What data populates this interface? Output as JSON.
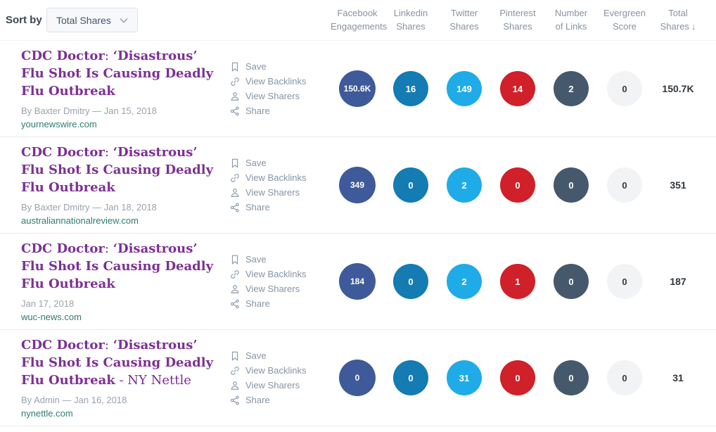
{
  "toolbar": {
    "sort_by_label": "Sort by",
    "sort_dropdown_value": "Total Shares"
  },
  "columns": [
    {
      "line1": "Facebook",
      "line2": "Engagements"
    },
    {
      "line1": "Linkedin",
      "line2": "Shares"
    },
    {
      "line1": "Twitter",
      "line2": "Shares"
    },
    {
      "line1": "Pinterest",
      "line2": "Shares"
    },
    {
      "line1": "Number",
      "line2": "of Links"
    },
    {
      "line1": "Evergreen",
      "line2": "Score"
    },
    {
      "line1": "Total",
      "line2": "Shares",
      "sorted": true,
      "sort_icon": "↓"
    }
  ],
  "actions": [
    {
      "label": "Save"
    },
    {
      "label": "View Backlinks"
    },
    {
      "label": "View Sharers"
    },
    {
      "label": "Share"
    }
  ],
  "colors": {
    "facebook": "#3f5a9a",
    "linkedin": "#147bb3",
    "twitter": "#1fabe8",
    "pinterest": "#d0202a",
    "links": "#46586c",
    "evergreen": "#f2f3f4",
    "title_purple": "#7c3093",
    "domain_teal": "#2f7d6d"
  },
  "rows": [
    {
      "title_parts": [
        {
          "text": "CDC Doctor",
          "bold": true
        },
        {
          "text": ": ",
          "bold": false
        },
        {
          "text": "‘Disastrous’ Flu Shot Is Causing Deadly Flu Outbreak",
          "bold": true
        }
      ],
      "byline": "By Baxter Dmitry — Jan 15, 2018",
      "domain": "yournewswire.com",
      "metrics": {
        "facebook_engagements": "150.6K",
        "linkedin_shares": "16",
        "twitter_shares": "149",
        "pinterest_shares": "14",
        "number_of_links": "2",
        "evergreen_score": "0",
        "total_shares": "150.7K"
      }
    },
    {
      "title_parts": [
        {
          "text": "CDC Doctor",
          "bold": true
        },
        {
          "text": ": ",
          "bold": false
        },
        {
          "text": "‘Disastrous’ Flu Shot Is Causing Deadly Flu Outbreak",
          "bold": true
        }
      ],
      "byline": "By Baxter Dmitry — Jan 18, 2018",
      "domain": "australiannationalreview.com",
      "metrics": {
        "facebook_engagements": "349",
        "linkedin_shares": "0",
        "twitter_shares": "2",
        "pinterest_shares": "0",
        "number_of_links": "0",
        "evergreen_score": "0",
        "total_shares": "351"
      }
    },
    {
      "title_parts": [
        {
          "text": "CDC Doctor",
          "bold": true
        },
        {
          "text": ": ",
          "bold": false
        },
        {
          "text": "‘Disastrous’ Flu Shot Is Causing Deadly Flu Outbreak",
          "bold": true
        }
      ],
      "byline": "Jan 17, 2018",
      "domain": "wuc-news.com",
      "metrics": {
        "facebook_engagements": "184",
        "linkedin_shares": "0",
        "twitter_shares": "2",
        "pinterest_shares": "1",
        "number_of_links": "0",
        "evergreen_score": "0",
        "total_shares": "187"
      }
    },
    {
      "title_parts": [
        {
          "text": "CDC Doctor",
          "bold": true
        },
        {
          "text": ": ",
          "bold": false
        },
        {
          "text": "‘Disastrous’ Flu Shot Is Causing Deadly Flu Outbreak",
          "bold": true
        },
        {
          "text": " - NY Nettle",
          "bold": false
        }
      ],
      "byline": "By Admin — Jan 16, 2018",
      "domain": "nynettle.com",
      "metrics": {
        "facebook_engagements": "0",
        "linkedin_shares": "0",
        "twitter_shares": "31",
        "pinterest_shares": "0",
        "number_of_links": "0",
        "evergreen_score": "0",
        "total_shares": "31"
      }
    }
  ]
}
